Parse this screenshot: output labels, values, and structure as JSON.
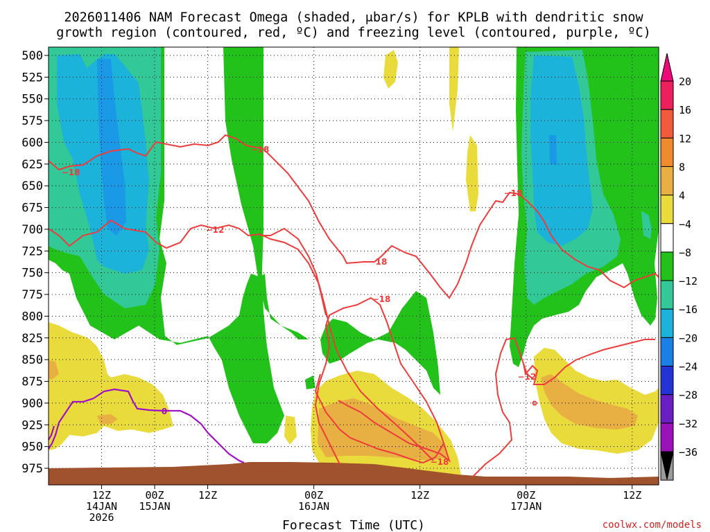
{
  "chart_data": {
    "type": "heatmap",
    "title_line1": "2026011406 NAM Forecast Omega (shaded, μbar/s) for KPLB with dendritic snow",
    "title_line2": "growth region (contoured, red, ºC) and freezing level (contoured, purple, ºC)",
    "xlabel": "Forecast Time (UTC)",
    "credit": "coolwx.com/models",
    "y_levels": [
      500,
      525,
      550,
      575,
      600,
      625,
      650,
      675,
      700,
      725,
      750,
      775,
      800,
      825,
      850,
      875,
      900,
      925,
      950,
      975
    ],
    "ylim": [
      500,
      990
    ],
    "x_range_hours": [
      6,
      75
    ],
    "x_ticks": [
      {
        "hour": 12,
        "label1": "12Z",
        "label2": "14JAN",
        "label3": "2026"
      },
      {
        "hour": 18,
        "label1": "00Z",
        "label2": "15JAN",
        "label3": ""
      },
      {
        "hour": 24,
        "label1": "12Z",
        "label2": "",
        "label3": ""
      },
      {
        "hour": 36,
        "label1": "00Z",
        "label2": "16JAN",
        "label3": ""
      },
      {
        "hour": 48,
        "label1": "12Z",
        "label2": "",
        "label3": ""
      },
      {
        "hour": 60,
        "label1": "00Z",
        "label2": "17JAN",
        "label3": ""
      },
      {
        "hour": 72,
        "label1": "12Z",
        "label2": "",
        "label3": ""
      }
    ],
    "colorbar": {
      "labels": [
        "20",
        "16",
        "12",
        "8",
        "4",
        "−4",
        "−8",
        "−12",
        "−16",
        "−20",
        "−24",
        "−28",
        "−32",
        "−36"
      ],
      "colors": [
        "#ee1f5d",
        "#f25a3c",
        "#ef8a2e",
        "#e8b042",
        "#eadb3c",
        "#ffffff",
        "#22c21b",
        "#33c898",
        "#1bb3d9",
        "#1a7fe6",
        "#2433d6",
        "#6a1fc4",
        "#9a13b8",
        "#9b9b9b",
        "#000000"
      ],
      "top_color": "#ee0a78"
    },
    "omega_regions": [
      {
        "color": "#22c21b",
        "name": "omega -4 to -8 (left)"
      },
      {
        "color": "#33c898",
        "name": "omega -8 to -12 (left)"
      },
      {
        "color": "#1bb3d9",
        "name": "omega -12 to -16 (left)"
      },
      {
        "color": "#22c21b",
        "name": "omega -4 to -8 (right)"
      },
      {
        "color": "#33c898",
        "name": "omega -8 to -12 (right)"
      },
      {
        "color": "#1bb3d9",
        "name": "omega -12 to -16 (right)"
      },
      {
        "color": "#eadb3c",
        "name": "omega 4 to 8"
      },
      {
        "color": "#e8b042",
        "name": "omega 8 to 12"
      }
    ],
    "contours": [
      {
        "label": "−18",
        "color": "#ee3b3b"
      },
      {
        "label": "−12",
        "color": "#ee3b3b"
      },
      {
        "label": "0",
        "color": "#a010c8"
      }
    ],
    "terrain_color": "#a0522d"
  }
}
